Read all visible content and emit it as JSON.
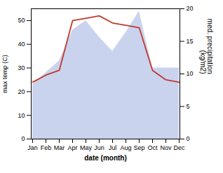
{
  "chart_data": {
    "type": "line",
    "categories": [
      "Jan",
      "Feb",
      "Mar",
      "Apr",
      "May",
      "Jun",
      "Jul",
      "Aug",
      "Sep",
      "Oct",
      "Nov",
      "Dec"
    ],
    "xlabel": "date (month)",
    "ylabel": "max temp (C)",
    "y2label": "med. precipitation\n(kg/m2)",
    "ylim": [
      0,
      55
    ],
    "yticks": [
      0,
      10,
      20,
      30,
      40,
      50
    ],
    "y2lim": [
      0,
      20
    ],
    "y2ticks": [
      0,
      5,
      10,
      15,
      20
    ],
    "grid": false,
    "series": [
      {
        "type": "area",
        "axis": "y2",
        "color": "#b8c4e8",
        "values": [
          8.363636363636363,
          10.181818181818182,
          12,
          16.727272727272727,
          18.181818181818183,
          15.636363636363637,
          13.454545454545455,
          16.363636363636363,
          19.636363636363637,
          10.909090909090908,
          10.909090909090908,
          10.909090909090908
        ]
      },
      {
        "type": "line",
        "color": "#c0392b",
        "values": [
          24,
          27,
          29,
          50,
          51,
          52,
          49,
          48,
          47,
          29,
          25,
          24
        ]
      }
    ]
  }
}
